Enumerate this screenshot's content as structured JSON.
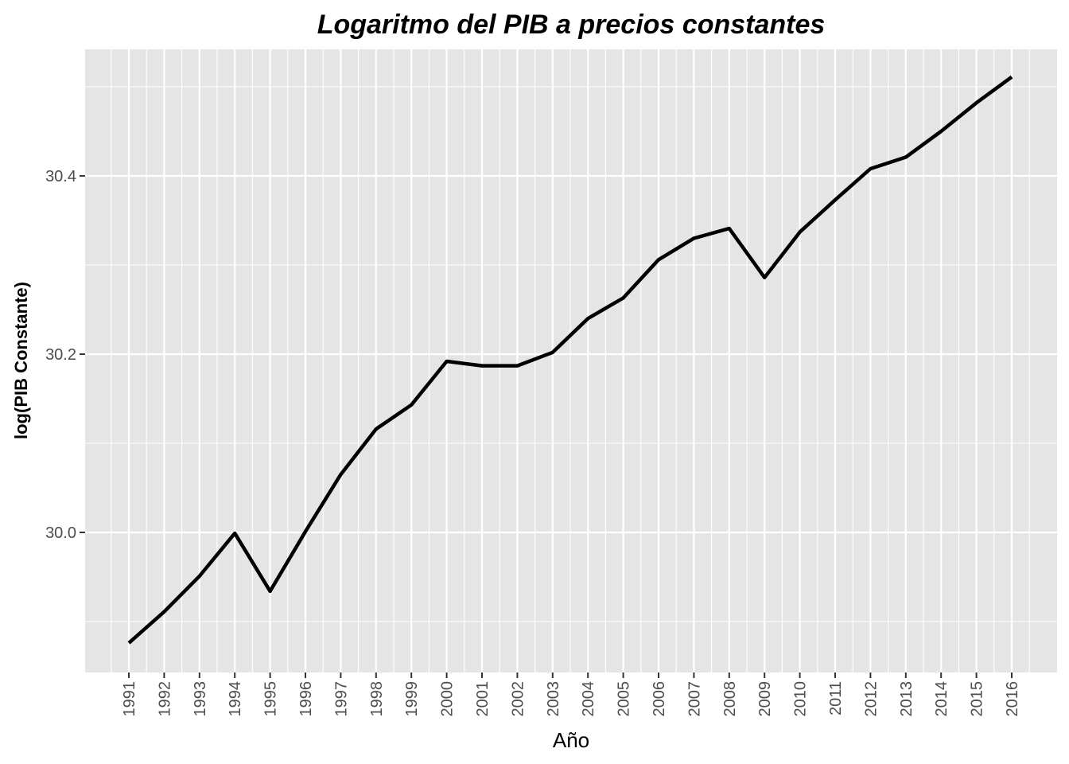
{
  "chart_data": {
    "type": "line",
    "title": "Logaritmo del PIB a precios constantes",
    "xlabel": "Año",
    "ylabel": "log(PIB Constante)",
    "x": [
      "1991",
      "1992",
      "1993",
      "1994",
      "1995",
      "1996",
      "1997",
      "1998",
      "1999",
      "2000",
      "2001",
      "2002",
      "2003",
      "2004",
      "2005",
      "2006",
      "2007",
      "2008",
      "2009",
      "2010",
      "2011",
      "2012",
      "2013",
      "2014",
      "2015",
      "2016"
    ],
    "series": [
      {
        "values": [
          29.876,
          29.911,
          29.951,
          29.999,
          29.934,
          30.001,
          30.065,
          30.116,
          30.143,
          30.192,
          30.187,
          30.187,
          30.202,
          30.24,
          30.263,
          30.306,
          30.33,
          30.341,
          30.286,
          30.337,
          30.373,
          30.408,
          30.421,
          30.45,
          30.482,
          30.511
        ]
      }
    ],
    "yticks": [
      "30.0",
      "30.2",
      "30.4"
    ],
    "ylim": [
      29.86,
      30.535
    ],
    "grid": true,
    "line_color": "#000000",
    "panel_background": "#e5e5e5",
    "grid_color": "#ffffff"
  }
}
